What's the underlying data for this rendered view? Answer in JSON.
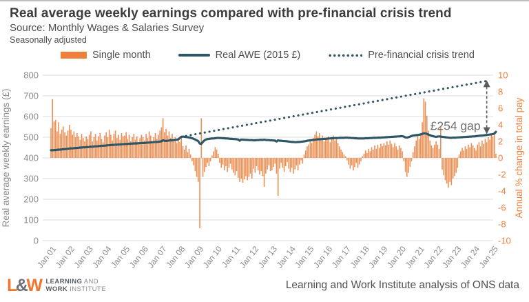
{
  "header": {
    "title": "Real average weekly earnings compared with pre-financial crisis trend",
    "source": "Source: Monthly Wages & Salaries Survey",
    "note": "Seasonally adjusted"
  },
  "legend": [
    {
      "label": "Single month",
      "type": "bar",
      "color": "#EE7F3D"
    },
    {
      "label": "Real AWE (2015 £)",
      "type": "line",
      "color": "#2E5666"
    },
    {
      "label": "Pre-financial crisis trend",
      "type": "dotted-line",
      "color": "#2E5666"
    }
  ],
  "colors": {
    "bar": "#EF8E52",
    "line": "#2E5666",
    "trend": "#2E5666",
    "grid": "#DCDCDC",
    "axis_gray": "#8C8C8C",
    "axis_orange": "#EE7F3D",
    "annotation": "#6E6E6E",
    "arrow": "#5A5A5A"
  },
  "annotation_label": "£254 gap",
  "footer": {
    "logo_l": "L",
    "logo_amp": "&",
    "logo_w": "W",
    "logo_line1_bold": "LEARNING",
    "logo_line1_rest": " AND",
    "logo_line2_bold": "WORK",
    "logo_line2_rest": " INSTITUTE",
    "credit": "Learning and Work Institute analysis of ONS data"
  },
  "chart_data": {
    "type": "bar+line",
    "title": "Real average weekly earnings compared with pre-financial crisis trend",
    "months_start": "Jan 2001",
    "months_end": "Mar 2025",
    "x_tick_labels": [
      "Jan 01",
      "Jan 02",
      "Jan 03",
      "Jan 04",
      "Jan 05",
      "Jan 06",
      "Jan 07",
      "Jan 08",
      "Jan 09",
      "Jan 10",
      "Jan 11",
      "Jan 12",
      "Jan 13",
      "Jan 14",
      "Jan 15",
      "Jan 16",
      "Jan 17",
      "Jan 18",
      "Jan 19",
      "Jan 20",
      "Jan 21",
      "Jan 22",
      "Jan 23",
      "Jan 24",
      "Jan 25"
    ],
    "left_axis": {
      "label": "Real average weekly earnings (£)",
      "min": 0,
      "max": 800,
      "tick_step": 100
    },
    "right_axis": {
      "label": "Annual % change in total pay",
      "min": -10,
      "max": 10,
      "tick_step": 2
    },
    "grid": true,
    "legend_position": "top",
    "series": [
      {
        "name": "Single month",
        "type": "bar",
        "axis": "right",
        "values": [
          3.6,
          7.1,
          4.4,
          4.6,
          3.2,
          4.3,
          2.9,
          3.4,
          3.8,
          3.1,
          2.7,
          3.3,
          4.0,
          3.4,
          2.8,
          3.2,
          2.5,
          3.0,
          2.6,
          2.2,
          2.9,
          2.4,
          2.0,
          2.6,
          2.3,
          2.8,
          3.2,
          2.0,
          2.5,
          2.9,
          2.1,
          2.6,
          3.0,
          2.3,
          1.9,
          2.7,
          3.1,
          2.5,
          3.4,
          2.8,
          2.1,
          2.9,
          3.3,
          2.4,
          2.8,
          2.2,
          3.0,
          2.6,
          2.7,
          3.1,
          2.3,
          2.8,
          2.0,
          2.5,
          2.9,
          2.2,
          2.6,
          1.9,
          2.4,
          2.8,
          2.5,
          2.1,
          2.9,
          2.4,
          3.2,
          2.7,
          2.0,
          2.5,
          3.0,
          2.3,
          2.8,
          3.3,
          3.7,
          4.8,
          3.1,
          3.5,
          2.7,
          3.2,
          2.4,
          2.9,
          2.1,
          2.5,
          1.8,
          2.3,
          1.9,
          2.4,
          1.4,
          1.0,
          1.5,
          0.7,
          1.1,
          0.4,
          -0.4,
          -0.9,
          -1.6,
          -2.3,
          -2.9,
          -8.5,
          4.8,
          -2.3,
          -1.7,
          -1.1,
          -0.6,
          -1.0,
          -0.4,
          0.3,
          0.8,
          1.3,
          1.0,
          0.5,
          -0.6,
          -1.2,
          -0.8,
          -1.5,
          -1.0,
          -1.7,
          -1.2,
          -0.7,
          -1.4,
          -1.8,
          -2.1,
          -1.6,
          -2.4,
          -2.9,
          -2.5,
          -3.0,
          -2.6,
          -2.2,
          -2.7,
          -2.3,
          -1.9,
          -2.5,
          -1.3,
          -1.8,
          -1.0,
          -1.5,
          -2.0,
          -1.6,
          -2.2,
          -3.5,
          -1.9,
          -1.4,
          -0.9,
          -1.6,
          -1.5,
          -1.1,
          -0.7,
          -1.9,
          -4.6,
          -1.3,
          -0.6,
          -1.2,
          -1.7,
          -1.0,
          -0.5,
          -1.3,
          -1.7,
          -1.2,
          -1.9,
          -1.4,
          -0.9,
          -1.5,
          -0.8,
          -0.3,
          -0.7,
          0.4,
          0.9,
          1.4,
          1.6,
          2.1,
          1.8,
          2.4,
          2.8,
          3.2,
          2.6,
          3.0,
          2.3,
          2.7,
          2.0,
          2.4,
          2.2,
          2.6,
          1.9,
          2.3,
          2.7,
          2.1,
          2.5,
          1.8,
          1.4,
          1.0,
          0.7,
          0.4,
          0.2,
          -0.3,
          -0.8,
          -1.3,
          -0.9,
          -1.5,
          -1.1,
          -0.6,
          -1.2,
          -0.8,
          -0.4,
          0.2,
          0.5,
          0.9,
          0.6,
          1.1,
          0.8,
          1.3,
          1.0,
          1.5,
          1.1,
          1.6,
          1.2,
          1.7,
          1.4,
          1.8,
          1.5,
          2.0,
          1.6,
          2.1,
          1.7,
          1.3,
          1.8,
          1.4,
          1.0,
          1.5,
          1.2,
          0.8,
          -0.4,
          -1.7,
          -2.3,
          -1.8,
          -1.1,
          -0.4,
          0.7,
          1.4,
          2.1,
          2.7,
          2.3,
          2.9,
          4.3,
          7.2,
          6.8,
          5.1,
          3.3,
          2.1,
          1.5,
          1.2,
          1.6,
          2.0,
          1.6,
          1.1,
          3.8,
          -1.4,
          -2.1,
          -2.7,
          -3.1,
          -3.6,
          -2.9,
          -3.3,
          -2.5,
          -2.2,
          -1.8,
          -1.2,
          0.4,
          0.8,
          1.2,
          0.9,
          1.4,
          1.1,
          1.6,
          1.3,
          1.8,
          1.5,
          1.2,
          0.9,
          1.6,
          1.9,
          1.4,
          2.1,
          1.7,
          2.3,
          1.9,
          2.5,
          2.2,
          2.8,
          2.6,
          3.2,
          0.5
        ]
      },
      {
        "name": "Real AWE (2015 £)",
        "type": "line",
        "axis": "left",
        "values": [
          437,
          437,
          438,
          438,
          439,
          440,
          440,
          441,
          442,
          442,
          443,
          444,
          445,
          446,
          446,
          447,
          448,
          448,
          449,
          450,
          450,
          451,
          451,
          452,
          452,
          453,
          454,
          454,
          455,
          456,
          456,
          457,
          458,
          458,
          459,
          459,
          460,
          461,
          461,
          462,
          463,
          463,
          464,
          464,
          465,
          465,
          466,
          466,
          467,
          467,
          468,
          468,
          469,
          469,
          470,
          470,
          470,
          471,
          471,
          472,
          472,
          472,
          473,
          474,
          474,
          475,
          476,
          476,
          477,
          477,
          478,
          479,
          480,
          486,
          483,
          482,
          483,
          484,
          485,
          485,
          486,
          487,
          488,
          490,
          496,
          502,
          503,
          502,
          501,
          500,
          499,
          497,
          495,
          492,
          489,
          485,
          481,
          469,
          468,
          477,
          485,
          489,
          491,
          492,
          493,
          494,
          494,
          495,
          496,
          497,
          496,
          496,
          495,
          495,
          494,
          494,
          493,
          492,
          492,
          491,
          491,
          490,
          489,
          483,
          489,
          488,
          488,
          487,
          487,
          486,
          486,
          486,
          485,
          485,
          486,
          486,
          487,
          487,
          487,
          488,
          487,
          486,
          486,
          485,
          485,
          484,
          484,
          479,
          485,
          483,
          483,
          482,
          481,
          481,
          480,
          479,
          478,
          477,
          477,
          476,
          476,
          477,
          477,
          478,
          479,
          480,
          481,
          483,
          484,
          485,
          486,
          487,
          488,
          489,
          490,
          490,
          491,
          491,
          492,
          492,
          493,
          494,
          494,
          495,
          495,
          496,
          496,
          496,
          497,
          497,
          497,
          497,
          498,
          498,
          497,
          497,
          496,
          496,
          495,
          495,
          494,
          494,
          494,
          494,
          494,
          495,
          495,
          495,
          496,
          496,
          497,
          497,
          497,
          498,
          498,
          498,
          499,
          499,
          500,
          500,
          501,
          501,
          502,
          502,
          503,
          503,
          504,
          504,
          505,
          505,
          503,
          499,
          498,
          500,
          503,
          506,
          508,
          509,
          510,
          511,
          512,
          514,
          516,
          519,
          518,
          516,
          513,
          510,
          507,
          505,
          503,
          502,
          503,
          504,
          503,
          502,
          501,
          500,
          499,
          498,
          497,
          497,
          498,
          498,
          498,
          499,
          499,
          500,
          500,
          501,
          501,
          502,
          502,
          503,
          503,
          504,
          504,
          505,
          506,
          507,
          508,
          508,
          509,
          510,
          511,
          512,
          513,
          514,
          515,
          518,
          526
        ]
      },
      {
        "name": "Pre-financial crisis trend",
        "type": "dotted-line",
        "axis": "left",
        "start_index": 85,
        "start_value": 502,
        "end_index": 284,
        "end_value": 772
      }
    ],
    "annotation": {
      "text": "£254 gap",
      "at_index": 284,
      "from_value": 772,
      "to_value": 518,
      "gap_value_gbp": 254
    }
  }
}
